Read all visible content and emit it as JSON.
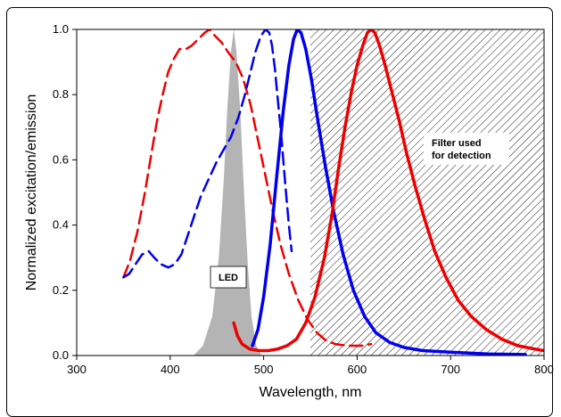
{
  "chart_data": {
    "type": "line",
    "xlabel": "Wavelength, nm",
    "ylabel": "Normalized excitation/emission",
    "xlim": [
      300,
      800
    ],
    "ylim": [
      0,
      1
    ],
    "x_ticks": [
      "300",
      "400",
      "500",
      "600",
      "700",
      "800"
    ],
    "y_ticks": [
      "0.0",
      "0.2",
      "0.4",
      "0.6",
      "0.8",
      "1.0"
    ],
    "grid": false,
    "legend": "none",
    "annotations": {
      "led_label": "LED",
      "filter_label_line1": "Filter used",
      "filter_label_line2": "for detection"
    },
    "filter_region": {
      "x_start": 550,
      "x_end": 800
    },
    "led_spectrum": {
      "color": "#b4b4b4",
      "points": [
        [
          425,
          0
        ],
        [
          435,
          0.03
        ],
        [
          445,
          0.12
        ],
        [
          452,
          0.3
        ],
        [
          457,
          0.52
        ],
        [
          461,
          0.75
        ],
        [
          465,
          0.93
        ],
        [
          468,
          1.0
        ],
        [
          471,
          0.93
        ],
        [
          475,
          0.75
        ],
        [
          479,
          0.5
        ],
        [
          483,
          0.28
        ],
        [
          487,
          0.12
        ],
        [
          492,
          0.03
        ],
        [
          498,
          0
        ]
      ]
    },
    "series": [
      {
        "color": "#ee0000",
        "style": "dashed",
        "points": [
          [
            350,
            0.24
          ],
          [
            357,
            0.29
          ],
          [
            365,
            0.38
          ],
          [
            373,
            0.5
          ],
          [
            380,
            0.62
          ],
          [
            386,
            0.72
          ],
          [
            392,
            0.8
          ],
          [
            398,
            0.87
          ],
          [
            404,
            0.91
          ],
          [
            410,
            0.94
          ],
          [
            417,
            0.94
          ],
          [
            423,
            0.95
          ],
          [
            430,
            0.97
          ],
          [
            437,
            0.99
          ],
          [
            442,
            1.0
          ],
          [
            448,
            0.98
          ],
          [
            455,
            0.96
          ],
          [
            462,
            0.93
          ],
          [
            470,
            0.9
          ],
          [
            478,
            0.85
          ],
          [
            486,
            0.77
          ],
          [
            494,
            0.66
          ],
          [
            502,
            0.55
          ],
          [
            510,
            0.44
          ],
          [
            518,
            0.34
          ],
          [
            527,
            0.25
          ],
          [
            537,
            0.17
          ],
          [
            547,
            0.11
          ],
          [
            557,
            0.07
          ],
          [
            567,
            0.045
          ],
          [
            577,
            0.035
          ],
          [
            590,
            0.03
          ],
          [
            605,
            0.03
          ],
          [
            615,
            0.035
          ]
        ]
      },
      {
        "color": "#0000ee",
        "style": "dashed",
        "points": [
          [
            350,
            0.24
          ],
          [
            356,
            0.25
          ],
          [
            363,
            0.28
          ],
          [
            370,
            0.31
          ],
          [
            377,
            0.32
          ],
          [
            383,
            0.3
          ],
          [
            390,
            0.28
          ],
          [
            398,
            0.27
          ],
          [
            405,
            0.28
          ],
          [
            412,
            0.31
          ],
          [
            419,
            0.37
          ],
          [
            426,
            0.43
          ],
          [
            433,
            0.49
          ],
          [
            441,
            0.54
          ],
          [
            449,
            0.59
          ],
          [
            457,
            0.63
          ],
          [
            465,
            0.67
          ],
          [
            473,
            0.73
          ],
          [
            480,
            0.8
          ],
          [
            486,
            0.87
          ],
          [
            491,
            0.93
          ],
          [
            497,
            0.98
          ],
          [
            502,
            1.0
          ],
          [
            506,
            0.99
          ],
          [
            509,
            0.95
          ],
          [
            512,
            0.88
          ],
          [
            515,
            0.79
          ],
          [
            519,
            0.67
          ],
          [
            523,
            0.53
          ],
          [
            527,
            0.4
          ],
          [
            530,
            0.32
          ]
        ]
      },
      {
        "color": "#0000ee",
        "style": "solid",
        "points": [
          [
            488,
            0.03
          ],
          [
            494,
            0.08
          ],
          [
            500,
            0.18
          ],
          [
            507,
            0.34
          ],
          [
            514,
            0.55
          ],
          [
            521,
            0.75
          ],
          [
            527,
            0.89
          ],
          [
            532,
            0.97
          ],
          [
            536,
            1.0
          ],
          [
            540,
            0.99
          ],
          [
            545,
            0.94
          ],
          [
            551,
            0.85
          ],
          [
            558,
            0.72
          ],
          [
            566,
            0.58
          ],
          [
            575,
            0.44
          ],
          [
            585,
            0.31
          ],
          [
            596,
            0.2
          ],
          [
            608,
            0.12
          ],
          [
            620,
            0.07
          ],
          [
            635,
            0.04
          ],
          [
            650,
            0.025
          ],
          [
            670,
            0.015
          ],
          [
            700,
            0.01
          ],
          [
            740,
            0.005
          ],
          [
            780,
            0.003
          ]
        ]
      },
      {
        "color": "#ee0000",
        "style": "solid",
        "points": [
          [
            468,
            0.1
          ],
          [
            472,
            0.06
          ],
          [
            477,
            0.035
          ],
          [
            485,
            0.02
          ],
          [
            495,
            0.015
          ],
          [
            505,
            0.015
          ],
          [
            515,
            0.02
          ],
          [
            525,
            0.03
          ],
          [
            535,
            0.05
          ],
          [
            545,
            0.1
          ],
          [
            555,
            0.18
          ],
          [
            565,
            0.3
          ],
          [
            573,
            0.43
          ],
          [
            580,
            0.57
          ],
          [
            587,
            0.7
          ],
          [
            594,
            0.81
          ],
          [
            600,
            0.89
          ],
          [
            606,
            0.95
          ],
          [
            611,
            0.99
          ],
          [
            615,
            1.0
          ],
          [
            619,
            0.99
          ],
          [
            624,
            0.95
          ],
          [
            630,
            0.89
          ],
          [
            637,
            0.81
          ],
          [
            645,
            0.72
          ],
          [
            653,
            0.62
          ],
          [
            662,
            0.52
          ],
          [
            672,
            0.42
          ],
          [
            683,
            0.32
          ],
          [
            695,
            0.24
          ],
          [
            708,
            0.17
          ],
          [
            722,
            0.12
          ],
          [
            738,
            0.08
          ],
          [
            755,
            0.05
          ],
          [
            772,
            0.03
          ],
          [
            790,
            0.02
          ],
          [
            800,
            0.015
          ]
        ]
      }
    ]
  }
}
